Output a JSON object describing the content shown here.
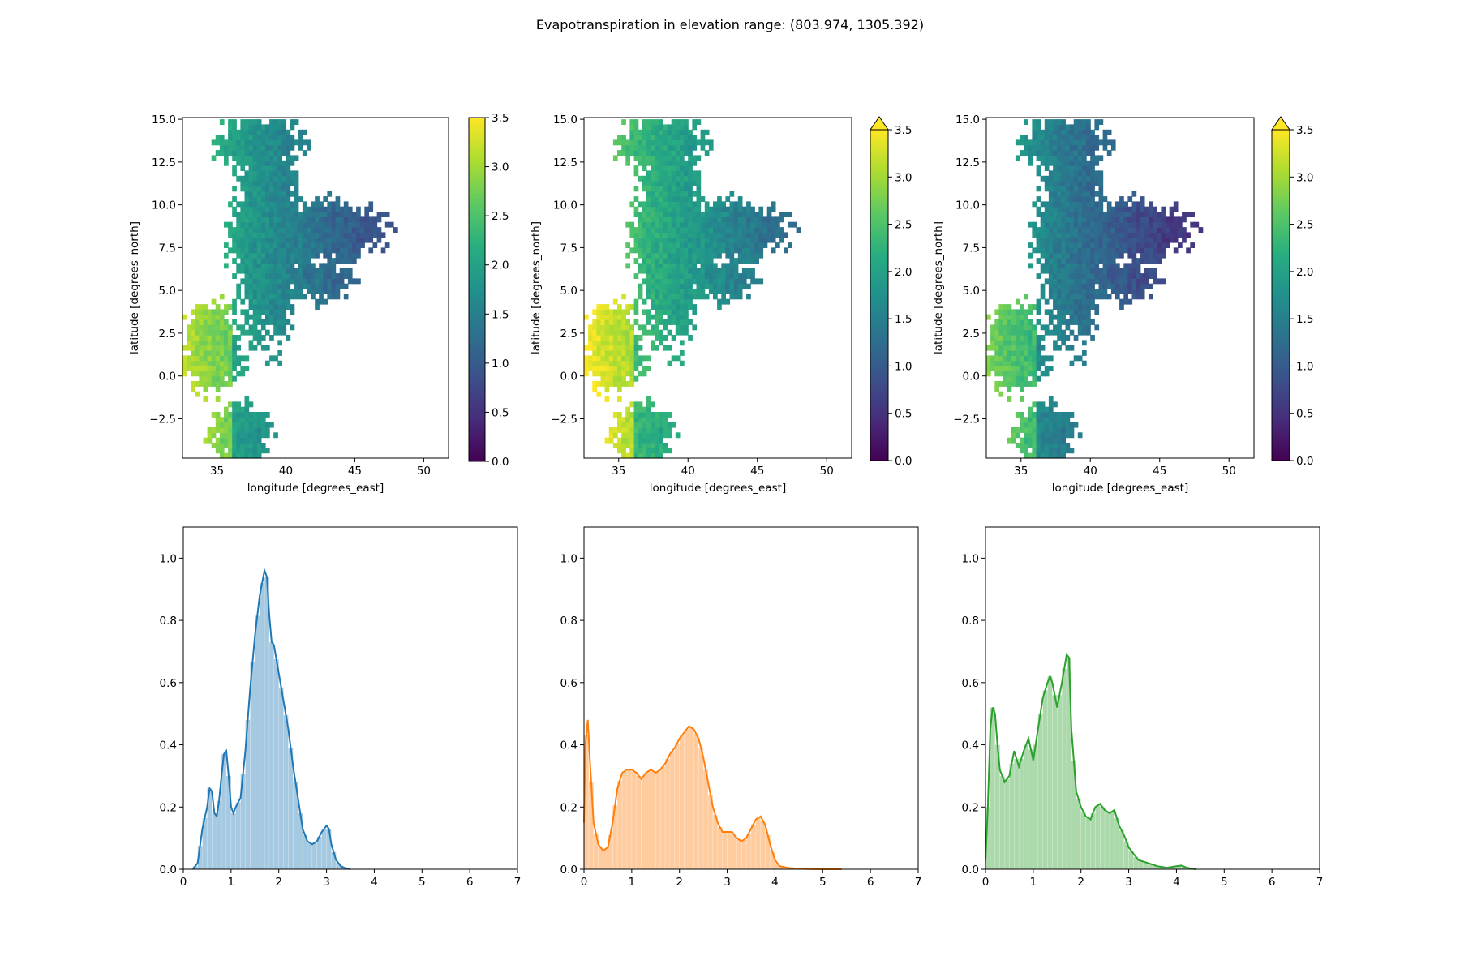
{
  "figure": {
    "title": "Evapotranspiration in elevation range: (803.974, 1305.392)"
  },
  "chart_data": [
    {
      "type": "heatmap",
      "panel": "map-1",
      "xlabel": "longitude [degrees_east]",
      "ylabel": "latitude [degrees_north]",
      "xlim": [
        32.5,
        51.8
      ],
      "ylim": [
        -4.8,
        15.1
      ],
      "xticks": [
        35,
        40,
        45,
        50
      ],
      "yticks": [
        -2.5,
        0.0,
        2.5,
        5.0,
        7.5,
        10.0,
        12.5,
        15.0
      ],
      "colormap": "viridis",
      "colorbar": {
        "vmin": 0.0,
        "vmax": 3.5,
        "extend": "none",
        "ticks": [
          0.0,
          0.5,
          1.0,
          1.5,
          2.0,
          2.5,
          3.0,
          3.5
        ]
      },
      "value_bias": 0.1
    },
    {
      "type": "heatmap",
      "panel": "map-2",
      "xlabel": "longitude [degrees_east]",
      "ylabel": "latitude [degrees_north]",
      "xlim": [
        32.5,
        51.8
      ],
      "ylim": [
        -4.8,
        15.1
      ],
      "xticks": [
        35,
        40,
        45,
        50
      ],
      "yticks": [
        -2.5,
        0.0,
        2.5,
        5.0,
        7.5,
        10.0,
        12.5,
        15.0
      ],
      "colormap": "viridis",
      "colorbar": {
        "vmin": 0.0,
        "vmax": 3.5,
        "extend": "max",
        "ticks": [
          0.0,
          0.5,
          1.0,
          1.5,
          2.0,
          2.5,
          3.0,
          3.5
        ]
      },
      "value_bias": 0.45
    },
    {
      "type": "heatmap",
      "panel": "map-3",
      "xlabel": "longitude [degrees_east]",
      "ylabel": "latitude [degrees_north]",
      "xlim": [
        32.5,
        51.8
      ],
      "ylim": [
        -4.8,
        15.1
      ],
      "xticks": [
        35,
        40,
        45,
        50
      ],
      "yticks": [
        -2.5,
        0.0,
        2.5,
        5.0,
        7.5,
        10.0,
        12.5,
        15.0
      ],
      "colormap": "viridis",
      "colorbar": {
        "vmin": 0.0,
        "vmax": 3.5,
        "extend": "max",
        "ticks": [
          0.0,
          0.5,
          1.0,
          1.5,
          2.0,
          2.5,
          3.0,
          3.5
        ]
      },
      "value_bias": -0.25
    },
    {
      "type": "area",
      "panel": "hist-1",
      "color": "#1f77b4",
      "xlim": [
        0,
        7
      ],
      "ylim": [
        0,
        1.1
      ],
      "xticks": [
        0,
        1,
        2,
        3,
        4,
        5,
        6,
        7
      ],
      "yticks": [
        0.0,
        0.2,
        0.4,
        0.6,
        0.8,
        1.0
      ],
      "x": [
        0.2,
        0.3,
        0.4,
        0.5,
        0.55,
        0.6,
        0.65,
        0.7,
        0.75,
        0.8,
        0.85,
        0.9,
        0.95,
        1.0,
        1.05,
        1.1,
        1.2,
        1.3,
        1.4,
        1.5,
        1.6,
        1.7,
        1.75,
        1.8,
        1.85,
        1.9,
        2.0,
        2.1,
        2.2,
        2.3,
        2.4,
        2.5,
        2.6,
        2.7,
        2.8,
        2.9,
        3.0,
        3.05,
        3.1,
        3.2,
        3.3,
        3.4,
        3.5
      ],
      "y": [
        0.0,
        0.02,
        0.13,
        0.2,
        0.26,
        0.25,
        0.18,
        0.17,
        0.22,
        0.3,
        0.37,
        0.38,
        0.3,
        0.2,
        0.18,
        0.2,
        0.23,
        0.38,
        0.58,
        0.75,
        0.88,
        0.96,
        0.94,
        0.82,
        0.73,
        0.72,
        0.63,
        0.54,
        0.45,
        0.33,
        0.23,
        0.13,
        0.09,
        0.08,
        0.09,
        0.12,
        0.14,
        0.13,
        0.08,
        0.03,
        0.01,
        0.003,
        0.0
      ]
    },
    {
      "type": "area",
      "panel": "hist-2",
      "color": "#ff7f0e",
      "xlim": [
        0,
        7
      ],
      "ylim": [
        0,
        1.1
      ],
      "xticks": [
        0,
        1,
        2,
        3,
        4,
        5,
        6,
        7
      ],
      "yticks": [
        0.0,
        0.2,
        0.4,
        0.6,
        0.8,
        1.0
      ],
      "x": [
        0.0,
        0.03,
        0.08,
        0.12,
        0.2,
        0.3,
        0.4,
        0.5,
        0.6,
        0.7,
        0.8,
        0.9,
        1.0,
        1.1,
        1.2,
        1.3,
        1.4,
        1.5,
        1.6,
        1.7,
        1.8,
        1.9,
        2.0,
        2.1,
        2.2,
        2.3,
        2.4,
        2.5,
        2.6,
        2.7,
        2.8,
        2.9,
        3.0,
        3.1,
        3.2,
        3.3,
        3.4,
        3.5,
        3.6,
        3.7,
        3.8,
        3.9,
        4.0,
        4.1,
        4.3,
        4.6,
        5.0,
        5.4
      ],
      "y": [
        0.15,
        0.4,
        0.48,
        0.36,
        0.15,
        0.08,
        0.06,
        0.07,
        0.15,
        0.26,
        0.31,
        0.32,
        0.32,
        0.31,
        0.29,
        0.31,
        0.32,
        0.31,
        0.32,
        0.34,
        0.37,
        0.39,
        0.42,
        0.44,
        0.46,
        0.45,
        0.42,
        0.36,
        0.28,
        0.2,
        0.15,
        0.12,
        0.12,
        0.12,
        0.1,
        0.09,
        0.1,
        0.13,
        0.16,
        0.17,
        0.14,
        0.08,
        0.03,
        0.01,
        0.004,
        0.001,
        0.0,
        0.0
      ]
    },
    {
      "type": "area",
      "panel": "hist-3",
      "color": "#2ca02c",
      "xlim": [
        0,
        7
      ],
      "ylim": [
        0,
        1.1
      ],
      "xticks": [
        0,
        1,
        2,
        3,
        4,
        5,
        6,
        7
      ],
      "yticks": [
        0.0,
        0.2,
        0.4,
        0.6,
        0.8,
        1.0
      ],
      "x": [
        0.0,
        0.05,
        0.1,
        0.15,
        0.2,
        0.25,
        0.3,
        0.4,
        0.5,
        0.6,
        0.7,
        0.8,
        0.9,
        1.0,
        1.1,
        1.2,
        1.3,
        1.35,
        1.4,
        1.5,
        1.6,
        1.7,
        1.75,
        1.8,
        1.9,
        2.0,
        2.1,
        2.2,
        2.3,
        2.4,
        2.5,
        2.6,
        2.7,
        2.8,
        2.9,
        3.0,
        3.1,
        3.2,
        3.4,
        3.6,
        3.8,
        4.0,
        4.1,
        4.2,
        4.3,
        4.4
      ],
      "y": [
        0.03,
        0.2,
        0.45,
        0.52,
        0.5,
        0.4,
        0.32,
        0.28,
        0.3,
        0.38,
        0.33,
        0.38,
        0.42,
        0.35,
        0.45,
        0.55,
        0.6,
        0.62,
        0.6,
        0.52,
        0.6,
        0.69,
        0.68,
        0.45,
        0.25,
        0.2,
        0.17,
        0.16,
        0.2,
        0.21,
        0.19,
        0.18,
        0.19,
        0.14,
        0.11,
        0.07,
        0.05,
        0.03,
        0.02,
        0.01,
        0.005,
        0.01,
        0.012,
        0.006,
        0.002,
        0.0
      ]
    }
  ]
}
